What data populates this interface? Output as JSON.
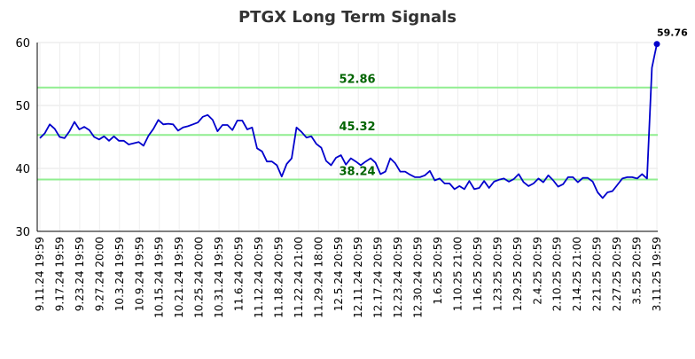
{
  "chart_data": {
    "type": "line",
    "title": "PTGX Long Term Signals",
    "xlabel": "",
    "ylabel": "",
    "ylim": [
      30,
      60
    ],
    "yticks": [
      30,
      40,
      50,
      60
    ],
    "grid": true,
    "legend": "none",
    "x_tick_labels": [
      "9.11.24 19:59",
      "9.17.24 19:59",
      "9.23.24 19:59",
      "9.27.24 20:00",
      "10.3.24 19:59",
      "10.9.24 19:59",
      "10.15.24 19:59",
      "10.21.24 19:59",
      "10.25.24 20:00",
      "10.31.24 19:59",
      "11.6.24 20:59",
      "11.12.24 20:59",
      "11.18.24 20:59",
      "11.22.24 21:00",
      "11.29.24 18:00",
      "12.5.24 20:59",
      "12.11.24 20:59",
      "12.17.24 20:59",
      "12.23.24 20:59",
      "12.30.24 20:59",
      "1.6.25 20:59",
      "1.10.25 21:00",
      "1.16.25 20:59",
      "1.23.25 20:59",
      "1.29.25 20:59",
      "2.4.25 20:59",
      "2.10.25 20:59",
      "2.14.25 21:00",
      "2.21.25 20:59",
      "2.27.25 20:59",
      "3.5.25 20:59",
      "3.11.25 19:59"
    ],
    "series": [
      {
        "color": "#0000cc",
        "values": [
          44.8,
          45.6,
          47.0,
          46.3,
          45.0,
          44.8,
          45.9,
          47.4,
          46.2,
          46.6,
          46.1,
          45.0,
          44.6,
          45.1,
          44.4,
          45.1,
          44.4,
          44.4,
          43.8,
          44.0,
          44.2,
          43.6,
          45.2,
          46.3,
          47.7,
          47.0,
          47.1,
          47.0,
          46.0,
          46.5,
          46.7,
          47.0,
          47.3,
          48.2,
          48.5,
          47.7,
          45.9,
          46.9,
          46.9,
          46.1,
          47.6,
          47.6,
          46.2,
          46.5,
          43.2,
          42.7,
          41.1,
          41.1,
          40.5,
          38.7,
          40.7,
          41.6,
          46.5,
          45.8,
          44.9,
          45.1,
          43.9,
          43.3,
          41.2,
          40.5,
          41.7,
          42.1,
          40.6,
          41.6,
          41.1,
          40.5,
          41.1,
          41.6,
          40.9,
          39.1,
          39.5,
          41.6,
          40.8,
          39.5,
          39.5,
          39.0,
          38.6,
          38.6,
          38.9,
          39.6,
          38.1,
          38.4,
          37.6,
          37.6,
          36.7,
          37.2,
          36.7,
          38.0,
          36.7,
          36.9,
          38.0,
          36.9,
          37.9,
          38.2,
          38.4,
          37.9,
          38.3,
          39.1,
          37.8,
          37.2,
          37.6,
          38.4,
          37.8,
          38.9,
          38.1,
          37.1,
          37.5,
          38.6,
          38.6,
          37.8,
          38.5,
          38.5,
          37.9,
          36.2,
          35.3,
          36.2,
          36.4,
          37.4,
          38.4,
          38.6,
          38.6,
          38.4,
          39.1,
          38.4,
          56.0,
          59.76
        ]
      }
    ],
    "levels": [
      {
        "value": 52.86,
        "label": "52.86",
        "color": "#90ee90"
      },
      {
        "value": 45.32,
        "label": "45.32",
        "color": "#90ee90"
      },
      {
        "value": 38.24,
        "label": "38.24",
        "color": "#90ee90"
      }
    ],
    "last_point": {
      "value": 59.76,
      "label": "59.76",
      "color": "#0000cc"
    }
  }
}
